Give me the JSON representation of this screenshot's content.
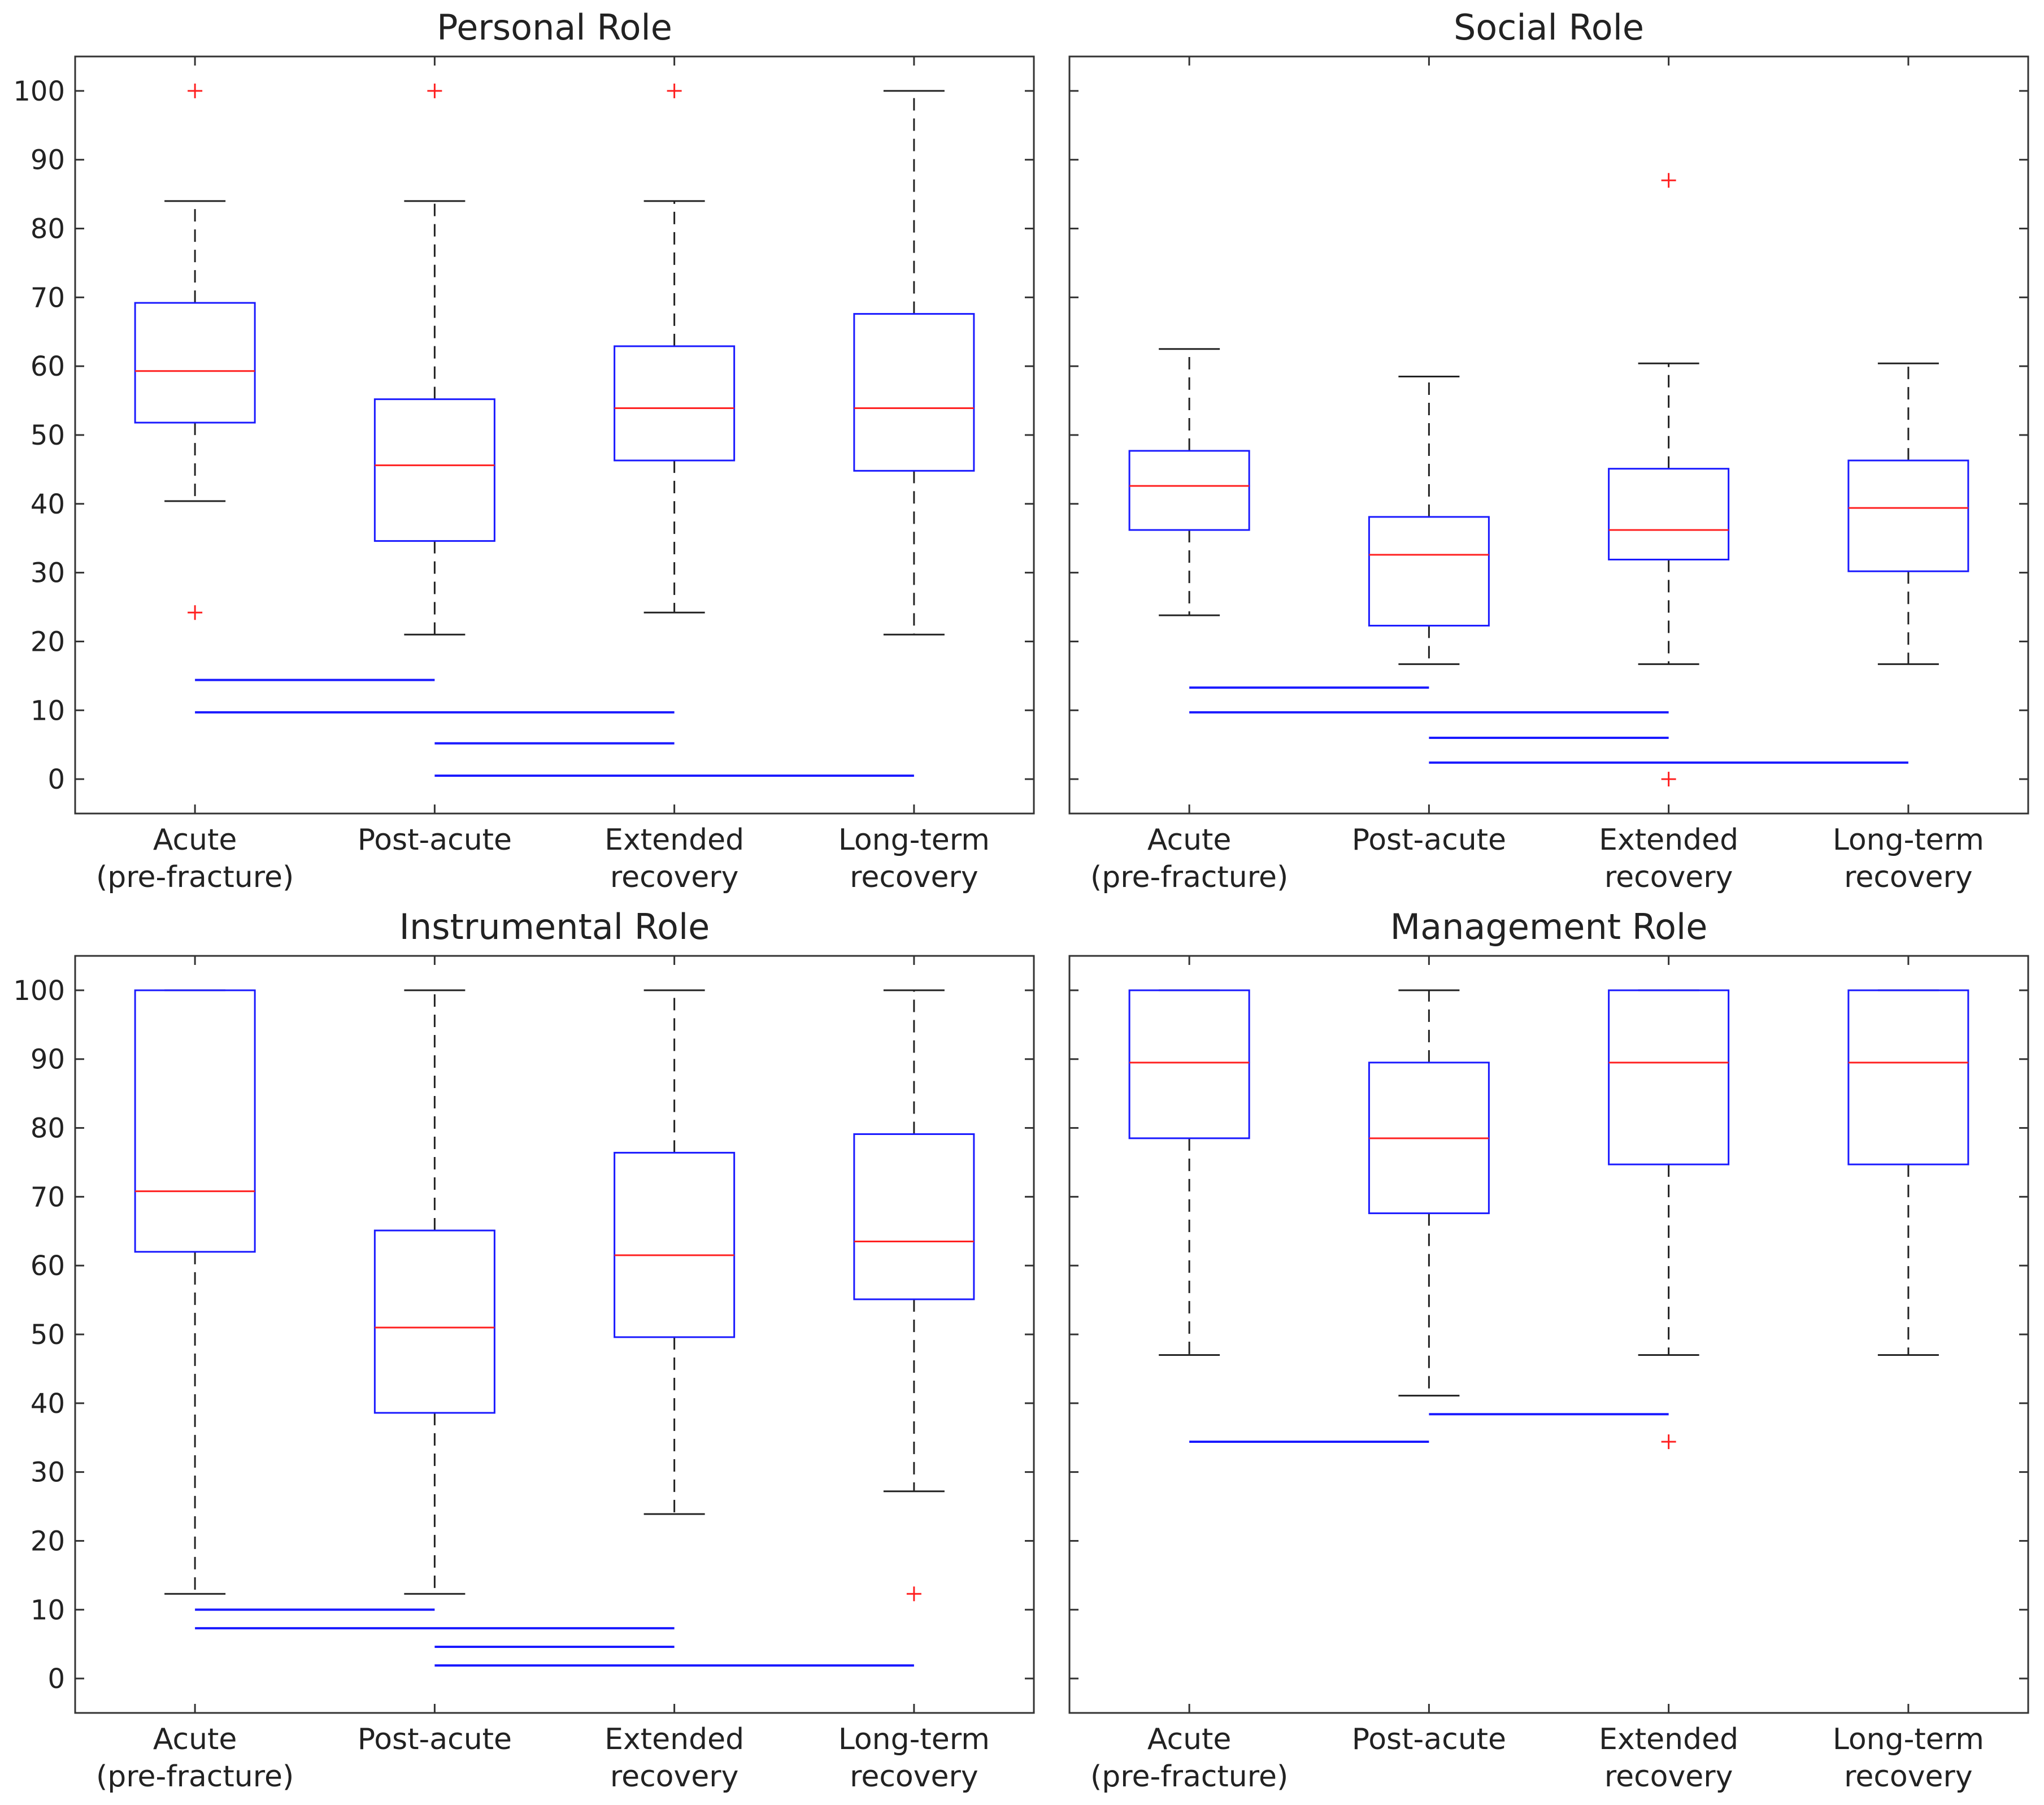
{
  "chart_data": [
    {
      "type": "box",
      "title": "Personal Role",
      "categories": [
        [
          "Acute",
          "(pre-fracture)"
        ],
        [
          "Post-acute"
        ],
        [
          "Extended",
          "recovery"
        ],
        [
          "Long-term",
          "recovery"
        ]
      ],
      "ylim": [
        -5,
        105
      ],
      "yticks": [
        0,
        10,
        20,
        30,
        40,
        50,
        60,
        70,
        80,
        90,
        100
      ],
      "boxes": [
        {
          "whisker_low": 40.4,
          "q1": 51.8,
          "median": 59.3,
          "q3": 69.2,
          "whisker_high": 84,
          "outliers": [
            100,
            24.2
          ]
        },
        {
          "whisker_low": 21,
          "q1": 34.6,
          "median": 45.6,
          "q3": 55.2,
          "whisker_high": 84,
          "outliers": [
            100
          ]
        },
        {
          "whisker_low": 24.2,
          "q1": 46.3,
          "median": 53.9,
          "q3": 62.9,
          "whisker_high": 84,
          "outliers": [
            100
          ]
        },
        {
          "whisker_low": 21,
          "q1": 44.8,
          "median": 53.9,
          "q3": 67.6,
          "whisker_high": 100,
          "outliers": []
        }
      ],
      "significance_bars": [
        {
          "from": 0,
          "to": 1,
          "y": 14.4
        },
        {
          "from": 0,
          "to": 2,
          "y": 9.7
        },
        {
          "from": 1,
          "to": 2,
          "y": 5.2
        },
        {
          "from": 1,
          "to": 3,
          "y": 0.5
        }
      ]
    },
    {
      "type": "box",
      "title": "Social Role",
      "categories": [
        [
          "Acute",
          "(pre-fracture)"
        ],
        [
          "Post-acute"
        ],
        [
          "Extended",
          "recovery"
        ],
        [
          "Long-term",
          "recovery"
        ]
      ],
      "ylim": [
        -5,
        105
      ],
      "yticks": [
        0,
        10,
        20,
        30,
        40,
        50,
        60,
        70,
        80,
        90,
        100
      ],
      "boxes": [
        {
          "whisker_low": 23.8,
          "q1": 36.2,
          "median": 42.6,
          "q3": 47.7,
          "whisker_high": 62.5,
          "outliers": []
        },
        {
          "whisker_low": 16.7,
          "q1": 22.3,
          "median": 32.6,
          "q3": 38.1,
          "whisker_high": 58.5,
          "outliers": []
        },
        {
          "whisker_low": 16.7,
          "q1": 31.9,
          "median": 36.2,
          "q3": 45.1,
          "whisker_high": 60.4,
          "outliers": [
            87,
            0
          ]
        },
        {
          "whisker_low": 16.7,
          "q1": 30.2,
          "median": 39.4,
          "q3": 46.3,
          "whisker_high": 60.4,
          "outliers": []
        }
      ],
      "significance_bars": [
        {
          "from": 0,
          "to": 1,
          "y": 13.3
        },
        {
          "from": 0,
          "to": 2,
          "y": 9.7
        },
        {
          "from": 1,
          "to": 2,
          "y": 6.0
        },
        {
          "from": 1,
          "to": 3,
          "y": 2.4
        }
      ]
    },
    {
      "type": "box",
      "title": "Instrumental Role",
      "categories": [
        [
          "Acute",
          "(pre-fracture)"
        ],
        [
          "Post-acute"
        ],
        [
          "Extended",
          "recovery"
        ],
        [
          "Long-term",
          "recovery"
        ]
      ],
      "ylim": [
        -5,
        105
      ],
      "yticks": [
        0,
        10,
        20,
        30,
        40,
        50,
        60,
        70,
        80,
        90,
        100
      ],
      "boxes": [
        {
          "whisker_low": 12.3,
          "q1": 62,
          "median": 70.8,
          "q3": 100,
          "whisker_high": 100,
          "outliers": []
        },
        {
          "whisker_low": 12.3,
          "q1": 38.6,
          "median": 51,
          "q3": 65.1,
          "whisker_high": 100,
          "outliers": []
        },
        {
          "whisker_low": 23.9,
          "q1": 49.6,
          "median": 61.5,
          "q3": 76.4,
          "whisker_high": 100,
          "outliers": []
        },
        {
          "whisker_low": 27.2,
          "q1": 55.1,
          "median": 63.5,
          "q3": 79.1,
          "whisker_high": 100,
          "outliers": [
            12.3
          ]
        }
      ],
      "significance_bars": [
        {
          "from": 0,
          "to": 1,
          "y": 10
        },
        {
          "from": 0,
          "to": 2,
          "y": 7.3
        },
        {
          "from": 1,
          "to": 2,
          "y": 4.6
        },
        {
          "from": 1,
          "to": 3,
          "y": 1.9
        }
      ]
    },
    {
      "type": "box",
      "title": "Management Role",
      "categories": [
        [
          "Acute",
          "(pre-fracture)"
        ],
        [
          "Post-acute"
        ],
        [
          "Extended",
          "recovery"
        ],
        [
          "Long-term",
          "recovery"
        ]
      ],
      "ylim": [
        -5,
        105
      ],
      "yticks": [
        0,
        10,
        20,
        30,
        40,
        50,
        60,
        70,
        80,
        90,
        100
      ],
      "boxes": [
        {
          "whisker_low": 47,
          "q1": 78.5,
          "median": 89.5,
          "q3": 100,
          "whisker_high": 100,
          "outliers": []
        },
        {
          "whisker_low": 41.1,
          "q1": 67.6,
          "median": 78.5,
          "q3": 89.5,
          "whisker_high": 100,
          "outliers": []
        },
        {
          "whisker_low": 47,
          "q1": 74.7,
          "median": 89.5,
          "q3": 100,
          "whisker_high": 100,
          "outliers": [
            34.4
          ]
        },
        {
          "whisker_low": 47,
          "q1": 74.7,
          "median": 89.5,
          "q3": 100,
          "whisker_high": 100,
          "outliers": []
        }
      ],
      "significance_bars": [
        {
          "from": 0,
          "to": 1,
          "y": 34.4
        },
        {
          "from": 1,
          "to": 2,
          "y": 38.4
        }
      ]
    }
  ],
  "colors": {
    "box": "#1a1aff",
    "median": "#ff2020",
    "whisker": "#222222",
    "outlier": "#ff2020",
    "significance": "#1a1aff",
    "axis": "#333333"
  }
}
